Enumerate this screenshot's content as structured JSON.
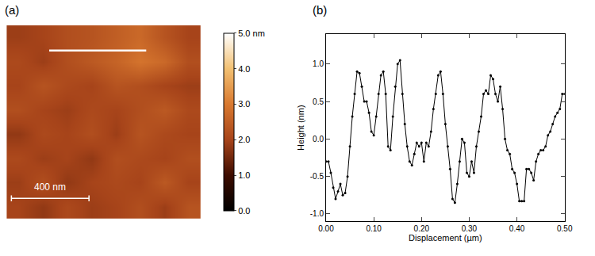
{
  "chart_data": [
    {
      "type": "heatmap",
      "title": "(a)",
      "x": [
        62.5,
        187.5,
        312.5,
        437.5,
        562.5,
        687.5,
        812.5,
        937.5
      ],
      "y": [
        62.5,
        187.5,
        312.5,
        437.5,
        562.5,
        687.5,
        812.5,
        937.5
      ],
      "z": [
        [
          2.0,
          1.8,
          2.1,
          1.9,
          2.0,
          2.2,
          1.9,
          2.3
        ],
        [
          1.9,
          2.2,
          1.8,
          2.0,
          2.1,
          2.0,
          2.4,
          2.0
        ],
        [
          2.1,
          1.9,
          2.0,
          1.8,
          2.2,
          2.1,
          2.0,
          2.2
        ],
        [
          1.8,
          2.1,
          2.0,
          2.2,
          1.9,
          2.3,
          2.1,
          2.0
        ],
        [
          2.2,
          2.0,
          1.9,
          2.1,
          2.0,
          2.2,
          2.4,
          2.1
        ],
        [
          2.0,
          2.3,
          2.1,
          2.0,
          2.3,
          2.2,
          2.0,
          1.9
        ],
        [
          2.1,
          1.9,
          2.2,
          2.4,
          2.6,
          2.9,
          2.7,
          2.2
        ],
        [
          1.9,
          2.0,
          2.2,
          2.3,
          2.5,
          2.7,
          2.3,
          2.0
        ]
      ],
      "xlim": [
        0,
        1000
      ],
      "ylim": [
        0,
        1000
      ],
      "tick_labels": false,
      "colorbar": {
        "range": [
          0,
          5
        ],
        "ticks": [
          {
            "value": 0,
            "label": "0.0"
          },
          {
            "value": 1,
            "label": "1.0"
          },
          {
            "value": 2,
            "label": "2.0"
          },
          {
            "value": 3,
            "label": "3.0"
          },
          {
            "value": 4,
            "label": "4.0"
          },
          {
            "value": 5,
            "label": "5.0 nm"
          }
        ]
      },
      "scale_bar": {
        "label": "400 nm",
        "length": 400
      },
      "profile_line": {
        "x": [
          220,
          720
        ],
        "y": [
          870,
          870
        ]
      }
    },
    {
      "type": "line",
      "title": "(b)",
      "xlabel": "Displacement (µm)",
      "ylabel": "Height (nm)",
      "x": [
        0.0,
        0.005,
        0.01,
        0.015,
        0.02,
        0.025,
        0.03,
        0.035,
        0.04,
        0.045,
        0.05,
        0.055,
        0.06,
        0.065,
        0.07,
        0.075,
        0.08,
        0.085,
        0.09,
        0.095,
        0.1,
        0.105,
        0.11,
        0.115,
        0.12,
        0.125,
        0.13,
        0.135,
        0.14,
        0.145,
        0.15,
        0.155,
        0.16,
        0.165,
        0.17,
        0.175,
        0.18,
        0.185,
        0.19,
        0.195,
        0.2,
        0.205,
        0.21,
        0.215,
        0.22,
        0.225,
        0.23,
        0.235,
        0.24,
        0.245,
        0.25,
        0.255,
        0.26,
        0.265,
        0.27,
        0.275,
        0.28,
        0.285,
        0.29,
        0.295,
        0.3,
        0.305,
        0.31,
        0.315,
        0.32,
        0.325,
        0.33,
        0.335,
        0.34,
        0.345,
        0.35,
        0.355,
        0.36,
        0.365,
        0.37,
        0.375,
        0.38,
        0.385,
        0.39,
        0.395,
        0.4,
        0.405,
        0.41,
        0.415,
        0.42,
        0.425,
        0.43,
        0.435,
        0.44,
        0.445,
        0.45,
        0.455,
        0.46,
        0.465,
        0.47,
        0.475,
        0.48,
        0.485,
        0.49,
        0.495,
        0.5
      ],
      "series": [
        {
          "color": "#000000",
          "marker": "circle",
          "values": [
            -0.3,
            -0.3,
            -0.45,
            -0.65,
            -0.8,
            -0.7,
            -0.6,
            -0.75,
            -0.72,
            -0.5,
            -0.1,
            0.3,
            0.6,
            0.9,
            0.88,
            0.7,
            0.5,
            0.5,
            0.35,
            0.1,
            0.05,
            0.3,
            0.6,
            0.85,
            0.9,
            0.6,
            -0.1,
            -0.15,
            0.3,
            0.7,
            1.0,
            1.05,
            0.6,
            0.2,
            -0.1,
            -0.3,
            -0.35,
            -0.2,
            -0.05,
            -0.1,
            -0.05,
            -0.3,
            -0.05,
            -0.1,
            0.1,
            0.4,
            0.6,
            0.85,
            0.9,
            0.6,
            0.2,
            -0.1,
            -0.4,
            -0.8,
            -0.85,
            -0.6,
            -0.3,
            0.0,
            -0.05,
            -0.45,
            -0.5,
            -0.3,
            -0.45,
            -0.1,
            0.1,
            0.3,
            0.6,
            0.65,
            0.6,
            0.85,
            0.8,
            0.6,
            0.5,
            0.7,
            0.4,
            0.0,
            -0.15,
            -0.2,
            -0.4,
            -0.45,
            -0.6,
            -0.83,
            -0.83,
            -0.83,
            -0.4,
            -0.4,
            -0.45,
            -0.55,
            -0.3,
            -0.2,
            -0.15,
            -0.15,
            -0.1,
            0.05,
            0.1,
            0.2,
            0.3,
            0.35,
            0.4,
            0.6,
            0.6
          ]
        }
      ],
      "xlim": [
        0,
        0.5
      ],
      "xticks": [
        {
          "value": 0,
          "label": "0.00"
        },
        {
          "value": 0.1,
          "label": "0.10"
        },
        {
          "value": 0.2,
          "label": "0.20"
        },
        {
          "value": 0.3,
          "label": "0.30"
        },
        {
          "value": 0.4,
          "label": "0.40"
        },
        {
          "value": 0.5,
          "label": "0.50"
        }
      ],
      "ylim": [
        -1.1,
        1.4
      ],
      "yticks": [
        {
          "value": -1,
          "label": "-1.0"
        },
        {
          "value": -0.5,
          "label": "-0.5"
        },
        {
          "value": 0,
          "label": "0.0"
        },
        {
          "value": 0.5,
          "label": "0.5"
        },
        {
          "value": 1,
          "label": "1.0"
        }
      ]
    }
  ]
}
